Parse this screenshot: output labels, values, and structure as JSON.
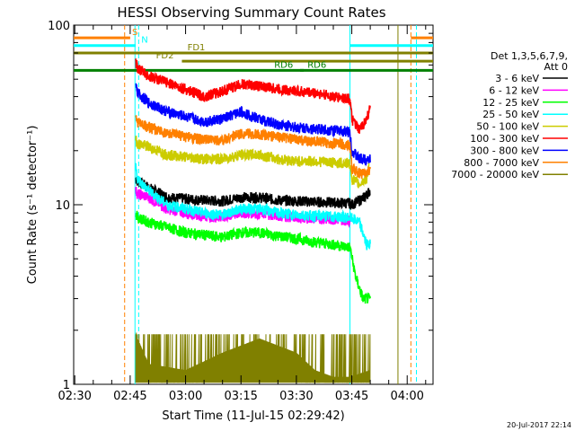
{
  "chart_data": {
    "type": "line",
    "title": "HESSI Observing Summary Count Rates",
    "xlabel": "Start Time (11-Jul-15 02:29:42)",
    "ylabel": "Count Rate (s⁻¹ detector⁻¹)",
    "yscale": "log",
    "ylim": [
      1,
      100
    ],
    "xlim_minutes": [
      -0.3,
      97
    ],
    "x_ticks": [
      {
        "label": "02:30",
        "minute": 0
      },
      {
        "label": "02:45",
        "minute": 15
      },
      {
        "label": "03:00",
        "minute": 30
      },
      {
        "label": "03:15",
        "minute": 45
      },
      {
        "label": "03:30",
        "minute": 60
      },
      {
        "label": "03:45",
        "minute": 75
      },
      {
        "label": "04:00",
        "minute": 90
      }
    ],
    "y_ticks": [
      {
        "label": "1",
        "value": 1
      },
      {
        "label": "10",
        "value": 10
      },
      {
        "label": "100",
        "value": 100
      }
    ],
    "legend": {
      "placement": "right",
      "header": [
        "Det 1,3,5,6,7,9,",
        "Att 0"
      ]
    },
    "series": [
      {
        "name": "3 - 6 keV",
        "color": "#000000",
        "data": [
          [
            16.5,
            14
          ],
          [
            17,
            13.5
          ],
          [
            20,
            12.5
          ],
          [
            25,
            11
          ],
          [
            30,
            10.8
          ],
          [
            35,
            10.6
          ],
          [
            40,
            10.5
          ],
          [
            45,
            11
          ],
          [
            50,
            11
          ],
          [
            55,
            10.6
          ],
          [
            60,
            10.5
          ],
          [
            65,
            10.4
          ],
          [
            70,
            10.3
          ],
          [
            74.5,
            10.2
          ],
          [
            75,
            10
          ],
          [
            77,
            10.6
          ],
          [
            78,
            10.8
          ],
          [
            80,
            12
          ]
        ]
      },
      {
        "name": "6 - 12 keV",
        "color": "#ff00ff",
        "data": [
          [
            16.5,
            12
          ],
          [
            17,
            11.5
          ],
          [
            20,
            11
          ],
          [
            25,
            9.5
          ],
          [
            30,
            9
          ],
          [
            35,
            8.7
          ],
          [
            40,
            8.5
          ],
          [
            45,
            9
          ],
          [
            50,
            9
          ],
          [
            55,
            8.7
          ],
          [
            60,
            8.5
          ],
          [
            65,
            8.4
          ],
          [
            70,
            8.3
          ],
          [
            74.5,
            8.2
          ]
        ]
      },
      {
        "name": "12 - 25 keV",
        "color": "#00ff00",
        "data": [
          [
            16.5,
            9
          ],
          [
            17,
            8.5
          ],
          [
            20,
            8
          ],
          [
            25,
            7.5
          ],
          [
            30,
            7
          ],
          [
            35,
            6.8
          ],
          [
            40,
            6.6
          ],
          [
            45,
            7
          ],
          [
            50,
            7
          ],
          [
            55,
            6.7
          ],
          [
            60,
            6.5
          ],
          [
            65,
            6.2
          ],
          [
            70,
            6
          ],
          [
            74.5,
            5.8
          ],
          [
            76,
            4
          ],
          [
            78,
            3
          ],
          [
            80,
            3
          ]
        ]
      },
      {
        "name": "25 - 50 keV",
        "color": "#00ffff",
        "data": [
          [
            16.5,
            16
          ],
          [
            17,
            14
          ],
          [
            20,
            12
          ],
          [
            25,
            10
          ],
          [
            30,
            9.5
          ],
          [
            35,
            9
          ],
          [
            40,
            8.8
          ],
          [
            45,
            9.5
          ],
          [
            50,
            9.5
          ],
          [
            55,
            9
          ],
          [
            60,
            8.8
          ],
          [
            65,
            8.7
          ],
          [
            70,
            8.6
          ],
          [
            74.5,
            8.5
          ],
          [
            77,
            8
          ],
          [
            78,
            7
          ],
          [
            79,
            6
          ],
          [
            80,
            6
          ]
        ]
      },
      {
        "name": "50 - 100 keV",
        "color": "#cccc00",
        "data": [
          [
            16.5,
            23
          ],
          [
            17,
            22
          ],
          [
            20,
            21
          ],
          [
            25,
            19
          ],
          [
            30,
            18.5
          ],
          [
            35,
            18
          ],
          [
            40,
            18
          ],
          [
            45,
            19
          ],
          [
            50,
            19
          ],
          [
            55,
            18
          ],
          [
            60,
            17.5
          ],
          [
            65,
            17.5
          ],
          [
            70,
            17.2
          ],
          [
            74.5,
            17
          ],
          [
            75,
            14
          ],
          [
            77,
            13
          ],
          [
            79,
            14
          ],
          [
            80,
            18
          ]
        ]
      },
      {
        "name": "100 - 300 keV",
        "color": "#ff0000",
        "data": [
          [
            16.5,
            62
          ],
          [
            17,
            58
          ],
          [
            20,
            52
          ],
          [
            25,
            48
          ],
          [
            30,
            44
          ],
          [
            35,
            40
          ],
          [
            40,
            43
          ],
          [
            45,
            47
          ],
          [
            50,
            46
          ],
          [
            55,
            44
          ],
          [
            60,
            43
          ],
          [
            65,
            42
          ],
          [
            70,
            40
          ],
          [
            74.5,
            39
          ],
          [
            75,
            30
          ],
          [
            77,
            26
          ],
          [
            79,
            30
          ],
          [
            80,
            35
          ]
        ]
      },
      {
        "name": "300 - 800 keV",
        "color": "#0000ff",
        "data": [
          [
            16.5,
            45
          ],
          [
            17,
            42
          ],
          [
            20,
            37
          ],
          [
            25,
            33
          ],
          [
            30,
            31
          ],
          [
            35,
            29
          ],
          [
            40,
            30
          ],
          [
            45,
            33
          ],
          [
            50,
            30
          ],
          [
            55,
            28
          ],
          [
            60,
            27
          ],
          [
            65,
            26.5
          ],
          [
            70,
            26
          ],
          [
            74.5,
            25.5
          ],
          [
            75,
            20
          ],
          [
            77,
            18
          ],
          [
            79,
            18
          ],
          [
            80,
            18
          ]
        ]
      },
      {
        "name": "800 - 7000 keV",
        "color": "#ff8000",
        "data": [
          [
            16.5,
            30
          ],
          [
            17,
            29
          ],
          [
            20,
            27
          ],
          [
            25,
            25
          ],
          [
            30,
            24
          ],
          [
            35,
            23
          ],
          [
            40,
            23
          ],
          [
            45,
            25
          ],
          [
            50,
            24.5
          ],
          [
            55,
            24
          ],
          [
            60,
            23
          ],
          [
            65,
            22.5
          ],
          [
            70,
            22
          ],
          [
            74.5,
            21.5
          ],
          [
            75,
            16
          ],
          [
            77,
            15
          ],
          [
            79,
            15
          ],
          [
            80,
            16
          ]
        ]
      },
      {
        "name": "7000 - 20000 keV",
        "color": "#808000",
        "data": [
          [
            16.5,
            2
          ],
          [
            17,
            1.8
          ],
          [
            20,
            1.3
          ],
          [
            30,
            1.2
          ],
          [
            40,
            1.5
          ],
          [
            50,
            1.8
          ],
          [
            60,
            1.5
          ],
          [
            65,
            1.2
          ],
          [
            70,
            1.1
          ],
          [
            74.5,
            1.1
          ],
          [
            80,
            1.2
          ]
        ]
      }
    ],
    "flags": [
      {
        "label": "S",
        "color": "#ff8000",
        "value": 85,
        "from": -0.3,
        "to": 15,
        "label_at": 15.5
      },
      {
        "label": "S",
        "color": "#ff8000",
        "value": 85,
        "from": 91,
        "to": 97,
        "label_at": null
      },
      {
        "label": "N",
        "color": "#00ffff",
        "value": 77,
        "from": -0.3,
        "to": 16.5,
        "label_at": 18
      },
      {
        "label": "N",
        "color": "#00ffff",
        "value": 77,
        "from": 74.5,
        "to": 97,
        "label_at": null
      },
      {
        "label": "FD1",
        "color": "#808000",
        "value": 70,
        "from": -0.3,
        "to": 97,
        "label_at": 30.5
      },
      {
        "label": "FD2",
        "color": "#808000",
        "value": 63,
        "from": 29,
        "to": 97,
        "label_at": 22
      },
      {
        "label": "RD6",
        "color": "#008000",
        "value": 56,
        "from": -0.3,
        "to": 97,
        "label_at": 54
      },
      {
        "label": "RD6",
        "color": "#008000",
        "value": 56,
        "from": 61,
        "to": 62,
        "label_at": 63
      }
    ],
    "verticals": [
      {
        "minute": 13.5,
        "color": "#ff8000",
        "style": "dashed"
      },
      {
        "minute": 16.3,
        "color": "#00ffff",
        "style": "solid"
      },
      {
        "minute": 17.3,
        "color": "#00ffff",
        "style": "dashed"
      },
      {
        "minute": 74.5,
        "color": "#00ffff",
        "style": "solid"
      },
      {
        "minute": 87.5,
        "color": "#808000",
        "style": "solid"
      },
      {
        "minute": 91.0,
        "color": "#ff8000",
        "style": "dashed"
      },
      {
        "minute": 92.5,
        "color": "#00ffff",
        "style": "dashed"
      }
    ],
    "grid": false
  },
  "timestamp": "20-Jul-2017 22:14"
}
